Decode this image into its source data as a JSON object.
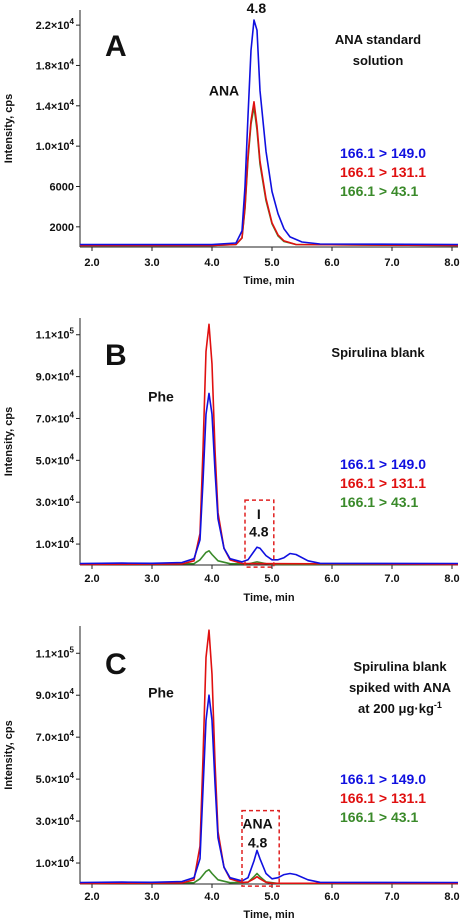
{
  "colors": {
    "blue": "#1010e0",
    "red": "#e01010",
    "green": "#3a8a2a",
    "highlight": "#e02020"
  },
  "chart_data": [
    {
      "type": "line",
      "panel_label": "A",
      "title_lines": [
        "ANA standard",
        "solution"
      ],
      "xlabel": "Time, min",
      "ylabel": "Intensity, cps",
      "xlim": [
        1.8,
        8.1
      ],
      "ylim": [
        0,
        23500
      ],
      "x_ticks": [
        2.0,
        3.0,
        4.0,
        5.0,
        6.0,
        7.0,
        8.0
      ],
      "x_tick_labels": [
        "2.0",
        "3.0",
        "4.0",
        "5.0",
        "6.0",
        "7.0",
        "8.0"
      ],
      "y_ticks": [
        2000,
        6000,
        10000,
        14000,
        18000,
        22000
      ],
      "y_tick_labels": [
        {
          "base": "2000"
        },
        {
          "base": "6000"
        },
        {
          "base": "1.0×10",
          "exp": "4"
        },
        {
          "base": "1.4×10",
          "exp": "4"
        },
        {
          "base": "1.8×10",
          "exp": "4"
        },
        {
          "base": "2.2×10",
          "exp": "4"
        }
      ],
      "series": [
        {
          "name": "166.1 > 149.0",
          "color": "#1010e0",
          "x": [
            1.8,
            4.0,
            4.4,
            4.5,
            4.55,
            4.6,
            4.65,
            4.7,
            4.75,
            4.8,
            4.9,
            5.0,
            5.1,
            5.2,
            5.3,
            5.5,
            5.8,
            8.1
          ],
          "y": [
            250,
            250,
            400,
            1600,
            6000,
            13000,
            19500,
            22500,
            21500,
            15500,
            9500,
            5500,
            3300,
            1800,
            1000,
            500,
            300,
            250
          ]
        },
        {
          "name": "166.1 > 131.1",
          "color": "#e01010",
          "x": [
            1.8,
            4.0,
            4.4,
            4.5,
            4.55,
            4.6,
            4.65,
            4.7,
            4.75,
            4.8,
            4.9,
            5.0,
            5.1,
            5.2,
            5.4,
            8.1
          ],
          "y": [
            150,
            150,
            250,
            900,
            4000,
            9000,
            12500,
            14400,
            12000,
            8500,
            4800,
            2400,
            1200,
            600,
            250,
            150
          ]
        },
        {
          "name": "166.1 > 43.1",
          "color": "#3a8a2a",
          "x": [
            1.8,
            4.0,
            4.4,
            4.5,
            4.55,
            4.6,
            4.65,
            4.7,
            4.75,
            4.8,
            4.9,
            5.0,
            5.1,
            5.2,
            5.4,
            8.1
          ],
          "y": [
            150,
            150,
            250,
            900,
            3800,
            8700,
            12200,
            13900,
            11600,
            8200,
            4600,
            2300,
            1100,
            550,
            250,
            150
          ]
        }
      ],
      "annotations": [
        {
          "text": "4.8",
          "x": 4.74,
          "y": 23200
        },
        {
          "text": "ANA",
          "x": 4.2,
          "y": 15000
        }
      ],
      "highlight": null
    },
    {
      "type": "line",
      "panel_label": "B",
      "title_lines": [
        "Spirulina blank"
      ],
      "xlabel": "Time, min",
      "ylabel": "Intensity, cps",
      "xlim": [
        1.8,
        8.1
      ],
      "ylim": [
        0,
        118000
      ],
      "x_ticks": [
        2.0,
        3.0,
        4.0,
        5.0,
        6.0,
        7.0,
        8.0
      ],
      "x_tick_labels": [
        "2.0",
        "3.0",
        "4.0",
        "5.0",
        "6.0",
        "7.0",
        "8.0"
      ],
      "y_ticks": [
        10000,
        30000,
        50000,
        70000,
        90000,
        110000
      ],
      "y_tick_labels": [
        {
          "base": "1.0×10",
          "exp": "4"
        },
        {
          "base": "3.0×10",
          "exp": "4"
        },
        {
          "base": "5.0×10",
          "exp": "4"
        },
        {
          "base": "7.0×10",
          "exp": "4"
        },
        {
          "base": "9.0×10",
          "exp": "4"
        },
        {
          "base": "1.1×10",
          "exp": "5"
        }
      ],
      "series": [
        {
          "name": "166.1 > 149.0",
          "color": "#1010e0",
          "x": [
            1.8,
            2.5,
            3.0,
            3.5,
            3.7,
            3.8,
            3.85,
            3.9,
            3.95,
            4.0,
            4.05,
            4.1,
            4.2,
            4.3,
            4.5,
            4.6,
            4.7,
            4.75,
            4.8,
            4.9,
            5.0,
            5.1,
            5.2,
            5.3,
            5.4,
            5.6,
            5.8,
            8.1
          ],
          "y": [
            700,
            900,
            800,
            1200,
            3000,
            12000,
            40000,
            72000,
            82000,
            72000,
            45000,
            22000,
            8000,
            3000,
            1500,
            2500,
            6500,
            8500,
            8000,
            4500,
            2500,
            2500,
            3500,
            5500,
            5000,
            2000,
            800,
            700
          ]
        },
        {
          "name": "166.1 > 131.1",
          "color": "#e01010",
          "x": [
            1.8,
            3.5,
            3.7,
            3.8,
            3.85,
            3.9,
            3.95,
            4.0,
            4.05,
            4.1,
            4.2,
            4.3,
            4.5,
            8.1
          ],
          "y": [
            300,
            500,
            2000,
            15000,
            55000,
            102000,
            115000,
            96000,
            55000,
            25000,
            8000,
            2500,
            700,
            300
          ]
        },
        {
          "name": "166.1 > 43.1",
          "color": "#3a8a2a",
          "x": [
            1.8,
            3.7,
            3.8,
            3.9,
            3.95,
            4.0,
            4.1,
            4.3,
            4.6,
            4.75,
            4.9,
            5.1,
            8.1
          ],
          "y": [
            300,
            600,
            2500,
            6000,
            6800,
            5000,
            2000,
            600,
            500,
            1500,
            600,
            300,
            300
          ]
        }
      ],
      "annotations": [
        {
          "text": "Phe",
          "x": 3.15,
          "y": 78000
        },
        {
          "text": "I",
          "x": 4.78,
          "y": 22000
        },
        {
          "text": "4.8",
          "x": 4.78,
          "y": 13500
        }
      ],
      "highlight": {
        "x": [
          4.55,
          5.03
        ],
        "y": [
          -1000,
          31000
        ]
      }
    },
    {
      "type": "line",
      "panel_label": "C",
      "title_lines": [
        "Spirulina blank",
        "spiked with ANA",
        "at 200 μg·kg"
      ],
      "title_last_sup": "-1",
      "xlabel": "Time, min",
      "ylabel": "Intensity, cps",
      "xlim": [
        1.8,
        8.1
      ],
      "ylim": [
        0,
        123000
      ],
      "x_ticks": [
        2.0,
        3.0,
        4.0,
        5.0,
        6.0,
        7.0,
        8.0
      ],
      "x_tick_labels": [
        "2.0",
        "3.0",
        "4.0",
        "5.0",
        "6.0",
        "7.0",
        "8.0"
      ],
      "y_ticks": [
        10000,
        30000,
        50000,
        70000,
        90000,
        110000
      ],
      "y_tick_labels": [
        {
          "base": "1.0×10",
          "exp": "4"
        },
        {
          "base": "3.0×10",
          "exp": "4"
        },
        {
          "base": "5.0×10",
          "exp": "4"
        },
        {
          "base": "7.0×10",
          "exp": "4"
        },
        {
          "base": "9.0×10",
          "exp": "4"
        },
        {
          "base": "1.1×10",
          "exp": "5"
        }
      ],
      "series": [
        {
          "name": "166.1 > 149.0",
          "color": "#1010e0",
          "x": [
            1.8,
            2.5,
            3.0,
            3.5,
            3.7,
            3.8,
            3.85,
            3.9,
            3.95,
            4.0,
            4.05,
            4.1,
            4.2,
            4.3,
            4.5,
            4.6,
            4.7,
            4.75,
            4.8,
            4.9,
            5.0,
            5.1,
            5.2,
            5.3,
            5.4,
            5.6,
            5.8,
            8.1
          ],
          "y": [
            700,
            900,
            800,
            1200,
            3000,
            12000,
            45000,
            78000,
            90000,
            78000,
            48000,
            22000,
            8000,
            3000,
            1500,
            3000,
            11000,
            16000,
            12000,
            5000,
            2500,
            3000,
            4500,
            5000,
            4500,
            2000,
            800,
            700
          ]
        },
        {
          "name": "166.1 > 131.1",
          "color": "#e01010",
          "x": [
            1.8,
            3.5,
            3.7,
            3.8,
            3.85,
            3.9,
            3.95,
            4.0,
            4.05,
            4.1,
            4.2,
            4.3,
            4.5,
            4.6,
            4.7,
            4.75,
            4.8,
            4.9,
            5.0,
            8.1
          ],
          "y": [
            300,
            500,
            2000,
            18000,
            60000,
            108000,
            121000,
            100000,
            58000,
            25000,
            8000,
            2500,
            700,
            900,
            2500,
            3500,
            2500,
            800,
            400,
            300
          ]
        },
        {
          "name": "166.1 > 43.1",
          "color": "#3a8a2a",
          "x": [
            1.8,
            3.7,
            3.8,
            3.9,
            3.95,
            4.0,
            4.1,
            4.3,
            4.6,
            4.7,
            4.75,
            4.8,
            4.9,
            5.1,
            8.1
          ],
          "y": [
            300,
            600,
            2500,
            6000,
            6800,
            5000,
            2000,
            600,
            800,
            3500,
            5000,
            3500,
            1000,
            300,
            300
          ]
        }
      ],
      "annotations": [
        {
          "text": "Phe",
          "x": 3.15,
          "y": 89000
        },
        {
          "text": "ANA",
          "x": 4.76,
          "y": 26500
        },
        {
          "text": "4.8",
          "x": 4.76,
          "y": 17500
        }
      ],
      "highlight": {
        "x": [
          4.5,
          5.12
        ],
        "y": [
          -1000,
          35000
        ]
      }
    }
  ]
}
